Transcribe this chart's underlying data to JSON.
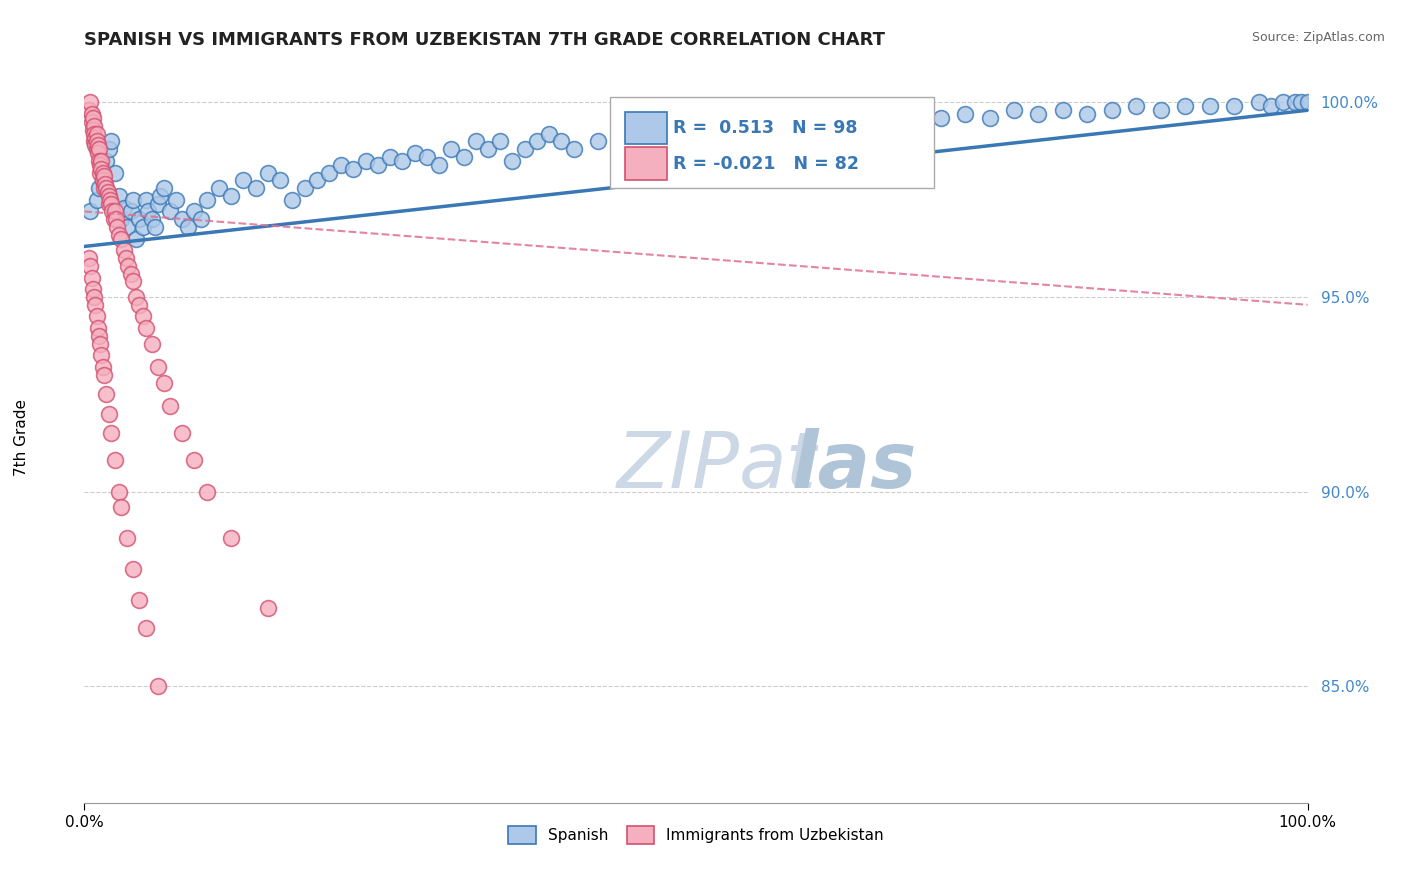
{
  "title": "SPANISH VS IMMIGRANTS FROM UZBEKISTAN 7TH GRADE CORRELATION CHART",
  "source": "Source: ZipAtlas.com",
  "ylabel": "7th Grade",
  "xlim": [
    0.0,
    1.0
  ],
  "ylim": [
    0.82,
    1.008
  ],
  "yticks": [
    0.85,
    0.9,
    0.95,
    1.0
  ],
  "ytick_labels": [
    "85.0%",
    "90.0%",
    "95.0%",
    "100.0%"
  ],
  "legend_blue_r": "0.513",
  "legend_blue_n": "98",
  "legend_pink_r": "-0.021",
  "legend_pink_n": "82",
  "blue_fill": "#adc8e8",
  "blue_edge": "#3a78b5",
  "pink_fill": "#f4b0bf",
  "pink_edge": "#d45070",
  "pink_line_color": "#e07090",
  "grid_color": "#cccccc",
  "blue_scatter_x": [
    0.005,
    0.01,
    0.012,
    0.015,
    0.018,
    0.02,
    0.022,
    0.025,
    0.028,
    0.03,
    0.032,
    0.035,
    0.038,
    0.04,
    0.042,
    0.045,
    0.048,
    0.05,
    0.052,
    0.055,
    0.058,
    0.06,
    0.062,
    0.065,
    0.07,
    0.075,
    0.08,
    0.085,
    0.09,
    0.095,
    0.1,
    0.11,
    0.12,
    0.13,
    0.14,
    0.15,
    0.16,
    0.17,
    0.18,
    0.19,
    0.2,
    0.21,
    0.22,
    0.23,
    0.24,
    0.25,
    0.26,
    0.27,
    0.28,
    0.29,
    0.3,
    0.31,
    0.32,
    0.33,
    0.34,
    0.35,
    0.36,
    0.37,
    0.38,
    0.39,
    0.4,
    0.42,
    0.44,
    0.46,
    0.48,
    0.5,
    0.52,
    0.54,
    0.56,
    0.58,
    0.6,
    0.62,
    0.64,
    0.66,
    0.68,
    0.7,
    0.72,
    0.74,
    0.76,
    0.78,
    0.8,
    0.82,
    0.84,
    0.86,
    0.88,
    0.9,
    0.92,
    0.94,
    0.96,
    0.97,
    0.98,
    0.99,
    0.995,
    1.0
  ],
  "blue_scatter_y": [
    0.972,
    0.975,
    0.978,
    0.98,
    0.985,
    0.988,
    0.99,
    0.982,
    0.976,
    0.97,
    0.973,
    0.968,
    0.972,
    0.975,
    0.965,
    0.97,
    0.968,
    0.975,
    0.972,
    0.97,
    0.968,
    0.974,
    0.976,
    0.978,
    0.972,
    0.975,
    0.97,
    0.968,
    0.972,
    0.97,
    0.975,
    0.978,
    0.976,
    0.98,
    0.978,
    0.982,
    0.98,
    0.975,
    0.978,
    0.98,
    0.982,
    0.984,
    0.983,
    0.985,
    0.984,
    0.986,
    0.985,
    0.987,
    0.986,
    0.984,
    0.988,
    0.986,
    0.99,
    0.988,
    0.99,
    0.985,
    0.988,
    0.99,
    0.992,
    0.99,
    0.988,
    0.99,
    0.992,
    0.993,
    0.992,
    0.994,
    0.992,
    0.994,
    0.993,
    0.995,
    0.996,
    0.994,
    0.996,
    0.995,
    0.997,
    0.996,
    0.997,
    0.996,
    0.998,
    0.997,
    0.998,
    0.997,
    0.998,
    0.999,
    0.998,
    0.999,
    0.999,
    0.999,
    1.0,
    0.999,
    1.0,
    1.0,
    1.0,
    1.0
  ],
  "pink_scatter_x": [
    0.004,
    0.005,
    0.006,
    0.006,
    0.007,
    0.007,
    0.008,
    0.008,
    0.008,
    0.009,
    0.009,
    0.01,
    0.01,
    0.01,
    0.011,
    0.011,
    0.012,
    0.012,
    0.013,
    0.013,
    0.014,
    0.014,
    0.015,
    0.015,
    0.016,
    0.016,
    0.017,
    0.018,
    0.019,
    0.02,
    0.02,
    0.021,
    0.022,
    0.023,
    0.024,
    0.025,
    0.026,
    0.027,
    0.028,
    0.03,
    0.032,
    0.034,
    0.036,
    0.038,
    0.04,
    0.042,
    0.045,
    0.048,
    0.05,
    0.055,
    0.06,
    0.065,
    0.07,
    0.08,
    0.09,
    0.1,
    0.12,
    0.15,
    0.004,
    0.005,
    0.006,
    0.007,
    0.008,
    0.009,
    0.01,
    0.011,
    0.012,
    0.013,
    0.014,
    0.015,
    0.016,
    0.018,
    0.02,
    0.022,
    0.025,
    0.028,
    0.03,
    0.035,
    0.04,
    0.045,
    0.05,
    0.06
  ],
  "pink_scatter_y": [
    0.998,
    1.0,
    0.997,
    0.995,
    0.996,
    0.993,
    0.994,
    0.992,
    0.99,
    0.991,
    0.989,
    0.992,
    0.99,
    0.988,
    0.989,
    0.987,
    0.988,
    0.985,
    0.984,
    0.982,
    0.985,
    0.983,
    0.982,
    0.98,
    0.981,
    0.978,
    0.979,
    0.978,
    0.977,
    0.976,
    0.974,
    0.975,
    0.974,
    0.972,
    0.97,
    0.972,
    0.97,
    0.968,
    0.966,
    0.965,
    0.962,
    0.96,
    0.958,
    0.956,
    0.954,
    0.95,
    0.948,
    0.945,
    0.942,
    0.938,
    0.932,
    0.928,
    0.922,
    0.915,
    0.908,
    0.9,
    0.888,
    0.87,
    0.96,
    0.958,
    0.955,
    0.952,
    0.95,
    0.948,
    0.945,
    0.942,
    0.94,
    0.938,
    0.935,
    0.932,
    0.93,
    0.925,
    0.92,
    0.915,
    0.908,
    0.9,
    0.896,
    0.888,
    0.88,
    0.872,
    0.865,
    0.85
  ],
  "blue_line_x0": 0.0,
  "blue_line_x1": 1.0,
  "blue_line_y0": 0.963,
  "blue_line_y1": 0.998,
  "pink_line_x0": 0.0,
  "pink_line_x1": 1.0,
  "pink_line_y0": 0.972,
  "pink_line_y1": 0.948
}
